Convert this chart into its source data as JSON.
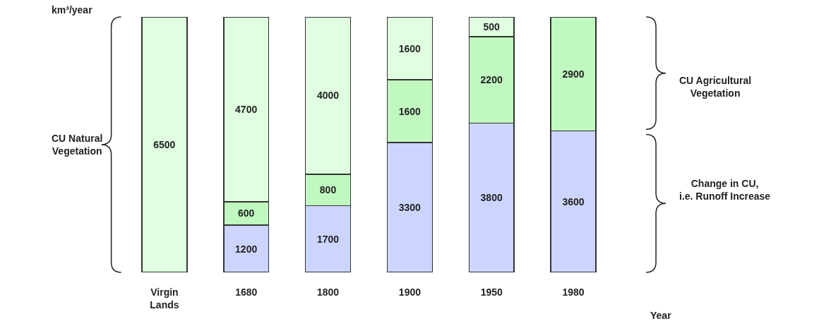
{
  "chart_data": {
    "type": "bar",
    "stacked": true,
    "data_labels": true,
    "ylabel": "km³/year",
    "xlabel": "Year",
    "categories": [
      "Virgin Lands",
      "1680",
      "1800",
      "1900",
      "1950",
      "1980"
    ],
    "ylim": [
      0,
      6500
    ],
    "series": [
      {
        "color": "#ccd5ff",
        "values": [
          null,
          1200,
          1700,
          3300,
          3800,
          3600
        ]
      },
      {
        "color": "#c0f8c0",
        "values": [
          null,
          600,
          800,
          1600,
          2200,
          2900
        ]
      },
      {
        "color": "#e0ffe0",
        "values": [
          6500,
          4700,
          4000,
          1600,
          500,
          null
        ]
      }
    ],
    "annotations": [
      "CU Natural Vegetation",
      "CU Agricultural Vegetation",
      "Change in CU, i.e. Runoff Increase"
    ]
  }
}
